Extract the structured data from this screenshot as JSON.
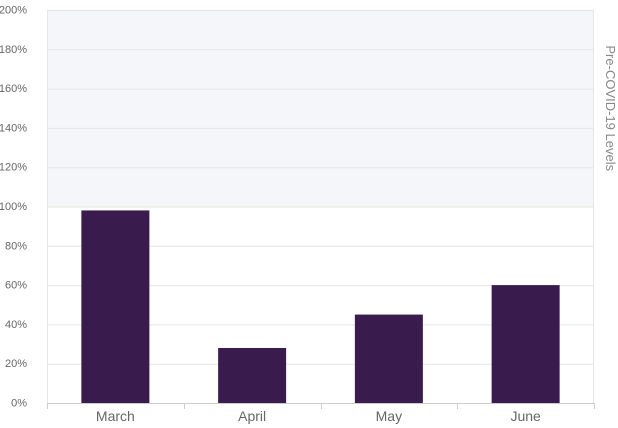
{
  "chart_data": {
    "type": "bar",
    "categories": [
      "March",
      "April",
      "May",
      "June"
    ],
    "values": [
      98,
      28,
      45,
      60
    ],
    "unit": "%",
    "ylim": [
      0,
      200
    ],
    "yticks": [
      0,
      20,
      40,
      60,
      80,
      100,
      120,
      140,
      160,
      180,
      200
    ],
    "ytick_labels": [
      "0%",
      "20%",
      "40%",
      "60%",
      "80%",
      "100%",
      "120%",
      "140%",
      "160%",
      "180%",
      "200%"
    ],
    "reference_band": {
      "from": 100,
      "to": 200,
      "label": "Pre-COVID-19 Levels",
      "color": "#f5f6fa"
    },
    "grid": true,
    "bar_color": "#3a1b4e",
    "title": "",
    "xlabel": "",
    "ylabel": ""
  }
}
